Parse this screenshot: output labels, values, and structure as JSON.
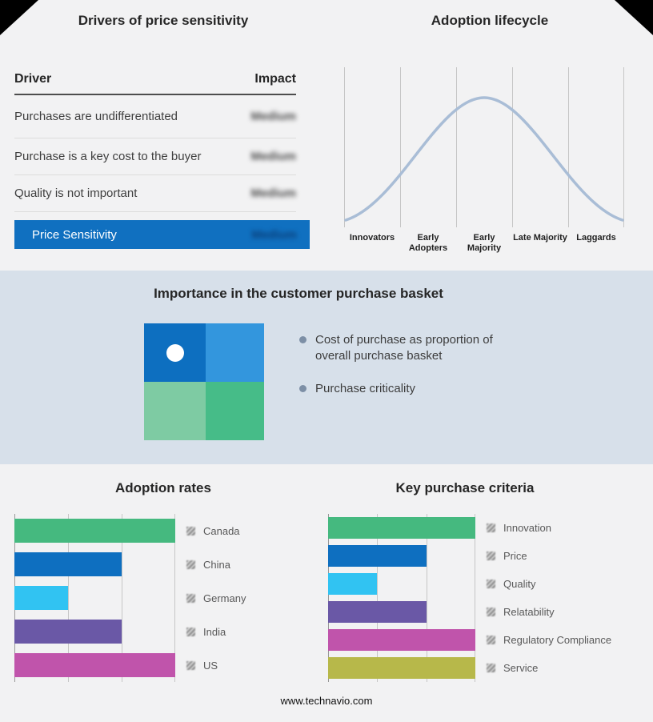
{
  "footer": {
    "text": "www.technavio.com"
  },
  "drivers": {
    "title": "Drivers of price sensitivity",
    "columns": {
      "driver": "Driver",
      "impact": "Impact"
    },
    "rows": [
      {
        "label": "Purchases are undifferentiated",
        "impact": "Medium",
        "impact_redacted": true
      },
      {
        "label": "Purchase is a key cost to the buyer",
        "impact": "Medium",
        "impact_redacted": true
      },
      {
        "label": "Quality is not important",
        "impact": "Medium",
        "impact_redacted": true
      }
    ],
    "highlight_row": {
      "label": "Price Sensitivity",
      "impact": "Medium",
      "impact_redacted": true,
      "bg_color": "#1070c0"
    }
  },
  "basket": {
    "title": "Importance in the customer purchase basket",
    "bullets": [
      "Cost of purchase as proportion of overall purchase basket",
      "Purchase criticality"
    ],
    "matrix": {
      "top_left_color": "#0d6fc0",
      "top_right_color": "#3396dd",
      "bottom_left_color": "#7ecba3",
      "bottom_right_color": "#46bc88",
      "marker_quadrant": "top-left",
      "marker_color": "#ffffff"
    }
  },
  "chart_data": [
    {
      "id": "adoption_lifecycle",
      "type": "area",
      "title": "Adoption lifecycle",
      "categories": [
        "Innovators",
        "Early Adopters",
        "Early Majority",
        "Late Majority",
        "Laggards"
      ],
      "relative_heights": [
        0.05,
        0.5,
        1.0,
        0.5,
        0.05
      ],
      "curve_color": "#a9bdd6",
      "grid": true,
      "legend_position": "none",
      "description": "Bell-shaped adoption curve peaking at Early Majority"
    },
    {
      "id": "adoption_rates",
      "type": "bar",
      "title": "Adoption rates",
      "orientation": "horizontal",
      "categories": [
        "Canada",
        "China",
        "Germany",
        "India",
        "US"
      ],
      "values": [
        3,
        2,
        1,
        2,
        3
      ],
      "xlim": [
        0,
        3
      ],
      "colors": [
        "#45b97f",
        "#0e6fc0",
        "#31c3f2",
        "#6a58a6",
        "#c054ab"
      ],
      "grid": true,
      "legend_position": "right"
    },
    {
      "id": "key_purchase_criteria",
      "type": "bar",
      "title": "Key purchase criteria",
      "orientation": "horizontal",
      "categories": [
        "Innovation",
        "Price",
        "Quality",
        "Relatability",
        "Regulatory Compliance",
        "Service"
      ],
      "values": [
        3,
        2,
        1,
        2,
        3,
        3
      ],
      "xlim": [
        0,
        3
      ],
      "colors": [
        "#45b97f",
        "#0e6fc0",
        "#31c3f2",
        "#6a58a6",
        "#c054ab",
        "#b7b84a"
      ],
      "grid": true,
      "legend_position": "right"
    }
  ]
}
